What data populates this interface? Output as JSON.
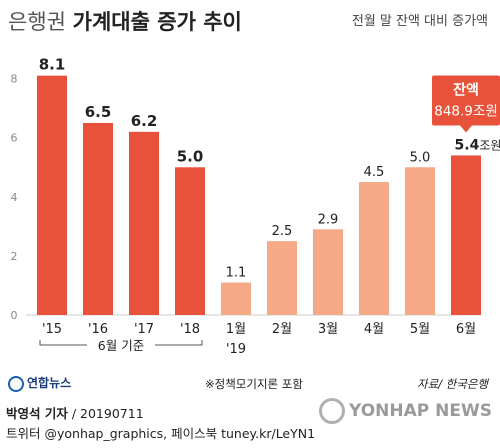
{
  "title_light": "은행권",
  "title_bold": "가계대출 증가 추이",
  "subtitle": "전월 말 잔액 대비 증가액",
  "callout": {
    "label": "잔액",
    "value": "848.9조원"
  },
  "annual_bracket_label": "6월 기준",
  "footnote": "※정책모기지론 포함",
  "source": "자료/ 한국은행",
  "logo": "연합뉴스",
  "credit_name": "박영석 기자",
  "credit_date": "20190711",
  "credit_line2": "트위터 @yonhap_graphics, 페이스북 tuney.kr/LeYN1",
  "watermark": "YONHAP NEWS",
  "colors": {
    "dark_bar": "#e8523a",
    "light_bar": "#f5a987",
    "callout_bg": "#e8523a",
    "axis": "#cccccc"
  },
  "chart_data": {
    "type": "bar",
    "categories": [
      "'15",
      "'16",
      "'17",
      "'18",
      "1월",
      "2월",
      "3월",
      "4월",
      "5월",
      "6월"
    ],
    "category_sublabels": [
      "",
      "",
      "",
      "",
      "'19",
      "",
      "",
      "",
      "",
      ""
    ],
    "values": [
      8.1,
      6.5,
      6.2,
      5.0,
      1.1,
      2.5,
      2.9,
      4.5,
      5.0,
      5.4
    ],
    "value_labels": [
      "8.1",
      "6.5",
      "6.2",
      "5.0",
      "1.1",
      "2.5",
      "2.9",
      "4.5",
      "5.0",
      "5.4조원"
    ],
    "bar_styles": [
      "dark",
      "dark",
      "dark",
      "dark",
      "light",
      "light",
      "light",
      "light",
      "light",
      "dark"
    ],
    "y_ticks": [
      "0",
      "2",
      "4",
      "6",
      "8"
    ],
    "ylim": [
      0,
      8.8
    ],
    "grid": false
  }
}
